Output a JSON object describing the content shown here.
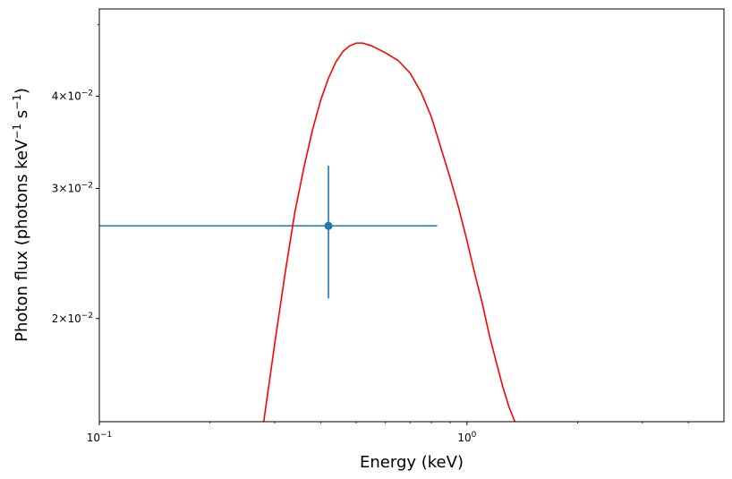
{
  "chart_data": {
    "type": "scatter",
    "xlabel": "Energy (keV)",
    "ylabel": "Photon flux (photons keV$^{-1}$ s$^{-1}$)",
    "ylabel_parts": {
      "prefix": "Photon flux (photons keV",
      "sup1": "−1",
      "mid": " s",
      "sup2": "−1",
      "suffix": ")"
    },
    "xscale": "log",
    "yscale": "log",
    "xlim": [
      0.1,
      5.0
    ],
    "ylim": [
      0.0145,
      0.0525
    ],
    "grid": false,
    "legend": "none",
    "xticks": [
      {
        "value": 0.1,
        "base": "10",
        "exp": "−1"
      },
      {
        "value": 1.0,
        "base": "10",
        "exp": "0"
      }
    ],
    "yticks": [
      {
        "value": 0.02,
        "mant": "2",
        "base": "10",
        "exp": "−2"
      },
      {
        "value": 0.03,
        "mant": "3",
        "base": "10",
        "exp": "−2"
      },
      {
        "value": 0.04,
        "mant": "4",
        "base": "10",
        "exp": "−2"
      }
    ],
    "series": [
      {
        "kind": "errorbar",
        "color": "#1f77b4",
        "points": [
          {
            "x": 0.42,
            "y": 0.0267,
            "xerr": [
              0.1,
              0.83
            ],
            "yerr": [
              0.0213,
              0.0322
            ]
          }
        ]
      },
      {
        "kind": "line",
        "color": "#ff0000",
        "x": [
          0.28,
          0.3,
          0.32,
          0.34,
          0.36,
          0.38,
          0.4,
          0.42,
          0.44,
          0.46,
          0.48,
          0.5,
          0.52,
          0.55,
          0.6,
          0.65,
          0.7,
          0.75,
          0.8,
          0.85,
          0.9,
          0.95,
          1.0,
          1.05,
          1.1,
          1.15,
          1.2,
          1.25,
          1.3,
          1.35
        ],
        "y": [
          0.0145,
          0.0185,
          0.023,
          0.0278,
          0.032,
          0.036,
          0.0395,
          0.0423,
          0.0445,
          0.046,
          0.0468,
          0.0472,
          0.0472,
          0.0468,
          0.0458,
          0.0447,
          0.043,
          0.0405,
          0.0375,
          0.034,
          0.031,
          0.0282,
          0.0255,
          0.023,
          0.021,
          0.019,
          0.0175,
          0.0162,
          0.0152,
          0.0145
        ]
      }
    ]
  }
}
